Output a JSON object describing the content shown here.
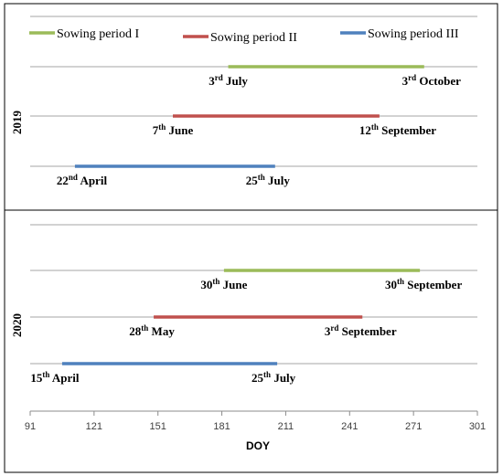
{
  "chart_data": {
    "type": "timeline",
    "xlabel": "DOY",
    "xlim": [
      91,
      301
    ],
    "xticks": [
      91,
      121,
      151,
      181,
      211,
      241,
      271,
      301
    ],
    "colors": {
      "Sowing period I": "#9bbb59",
      "Sowing period II": "#c0504d",
      "Sowing period III": "#4f81bd"
    },
    "legend": {
      "placement": "top",
      "entries": [
        "Sowing period I",
        "Sowing period II",
        "Sowing period III"
      ]
    },
    "panels": [
      {
        "year": "2019",
        "series": [
          {
            "name": "Sowing period I",
            "start_doy": 184,
            "end_doy": 276,
            "start": {
              "day": "3",
              "suffix": "rd",
              "month": "July"
            },
            "end": {
              "day": "3",
              "suffix": "rd",
              "month": "October"
            }
          },
          {
            "name": "Sowing period II",
            "start_doy": 158,
            "end_doy": 255,
            "start": {
              "day": "7",
              "suffix": "th",
              "month": "June"
            },
            "end": {
              "day": "12",
              "suffix": "th",
              "month": "September"
            }
          },
          {
            "name": "Sowing period III",
            "start_doy": 112,
            "end_doy": 206,
            "start": {
              "day": "22",
              "suffix": "nd",
              "month": "April"
            },
            "end": {
              "day": "25",
              "suffix": "th",
              "month": "July"
            }
          }
        ]
      },
      {
        "year": "2020",
        "series": [
          {
            "name": "Sowing period I",
            "start_doy": 182,
            "end_doy": 274,
            "start": {
              "day": "30",
              "suffix": "th",
              "month": "June"
            },
            "end": {
              "day": "30",
              "suffix": "th",
              "month": "September"
            }
          },
          {
            "name": "Sowing period II",
            "start_doy": 149,
            "end_doy": 247,
            "start": {
              "day": "28",
              "suffix": "th",
              "month": "May"
            },
            "end": {
              "day": "3",
              "suffix": "rd",
              "month": "September"
            }
          },
          {
            "name": "Sowing period III",
            "start_doy": 106,
            "end_doy": 207,
            "start": {
              "day": "15",
              "suffix": "th",
              "month": "April"
            },
            "end": {
              "day": "25",
              "suffix": "th",
              "month": "July"
            }
          }
        ]
      }
    ]
  }
}
